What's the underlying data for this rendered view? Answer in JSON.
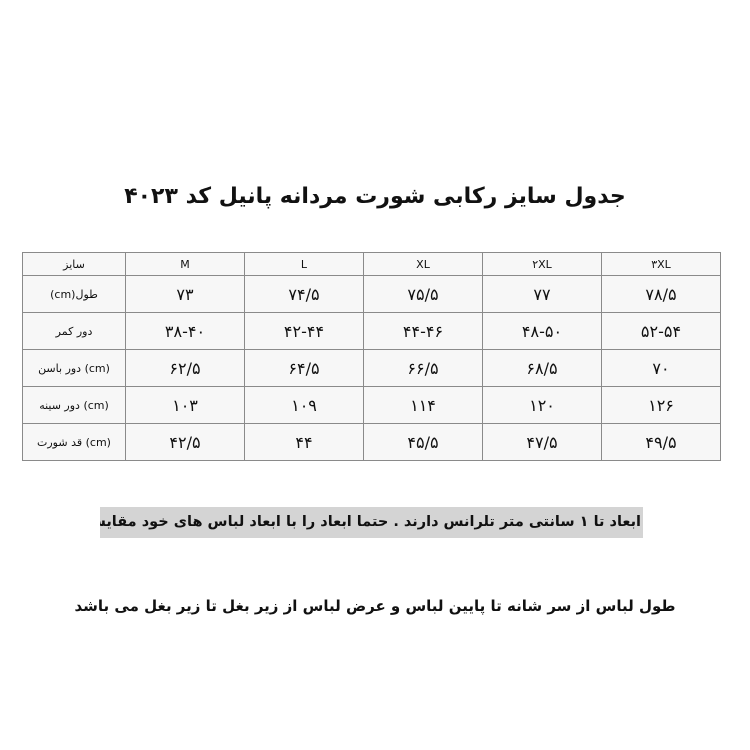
{
  "title": "جدول سایز رکابی شورت مردانه پانیل کد ۴۰۲۳",
  "table": {
    "header": [
      "سایز",
      "M",
      "L",
      "XL",
      "۲XL",
      "۳XL"
    ],
    "rows": [
      {
        "label": "طول(cm)",
        "values": [
          "۷۳",
          "۷۴/۵",
          "۷۵/۵",
          "۷۷",
          "۷۸/۵"
        ]
      },
      {
        "label": "دور کمر",
        "values": [
          "۳۸-۴۰",
          "۴۲-۴۴",
          "۴۴-۴۶",
          "۴۸-۵۰",
          "۵۲-۵۴"
        ]
      },
      {
        "label": "(cm) دور باسن",
        "values": [
          "۶۲/۵",
          "۶۴/۵",
          "۶۶/۵",
          "۶۸/۵",
          "۷۰"
        ]
      },
      {
        "label": "(cm) دور سینه",
        "values": [
          "۱۰۳",
          "۱۰۹",
          "۱۱۴",
          "۱۲۰",
          "۱۲۶"
        ]
      },
      {
        "label": "(cm) قد شورت",
        "values": [
          "۴۲/۵",
          "۴۴",
          "۴۵/۵",
          "۴۷/۵",
          "۴۹/۵"
        ]
      }
    ]
  },
  "tolerance_note": "ابعاد تا ۱ سانتی متر تلرانس دارند . حتما ابعاد را با ابعاد لباس های خود مقایسه بفرمایید .",
  "measure_note": "طول لباس از سر شانه تا پایین لباس و عرض لباس از زیر بغل تا زیر بغل می باشد"
}
